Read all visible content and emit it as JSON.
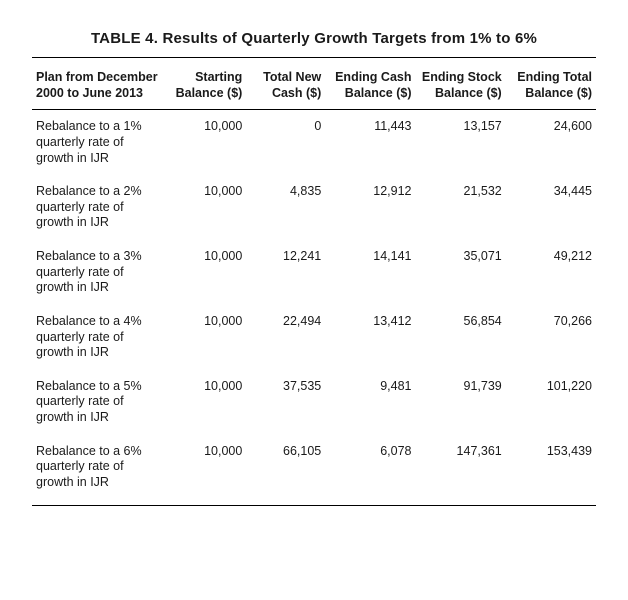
{
  "table": {
    "title": "TABLE 4. Results of Quarterly Growth Targets from 1% to 6%",
    "columns": [
      "Plan from December 2000 to June 2013",
      "Starting Balance ($)",
      "Total New Cash ($)",
      "Ending Cash Balance ($)",
      "Ending Stock Balance ($)",
      "Ending Total Balance ($)"
    ],
    "rows": [
      {
        "plan": "Rebalance to a 1% quarterly rate of growth in IJR",
        "starting": "10,000",
        "new_cash": "0",
        "end_cash": "11,443",
        "end_stock": "13,157",
        "end_total": "24,600"
      },
      {
        "plan": "Rebalance to a 2% quarterly rate of growth in IJR",
        "starting": "10,000",
        "new_cash": "4,835",
        "end_cash": "12,912",
        "end_stock": "21,532",
        "end_total": "34,445"
      },
      {
        "plan": "Rebalance to a 3% quarterly rate of growth in IJR",
        "starting": "10,000",
        "new_cash": "12,241",
        "end_cash": "14,141",
        "end_stock": "35,071",
        "end_total": "49,212"
      },
      {
        "plan": "Rebalance to a 4% quarterly rate of growth in IJR",
        "starting": "10,000",
        "new_cash": "22,494",
        "end_cash": "13,412",
        "end_stock": "56,854",
        "end_total": "70,266"
      },
      {
        "plan": "Rebalance to a 5% quarterly rate of growth in IJR",
        "starting": "10,000",
        "new_cash": "37,535",
        "end_cash": "9,481",
        "end_stock": "91,739",
        "end_total": "101,220"
      },
      {
        "plan": "Rebalance to a 6% quarterly rate of growth in IJR",
        "starting": "10,000",
        "new_cash": "66,105",
        "end_cash": "6,078",
        "end_stock": "147,361",
        "end_total": "153,439"
      }
    ],
    "colors": {
      "text": "#1a1a1a",
      "rule": "#000000",
      "background": "#ffffff"
    },
    "typography": {
      "title_fontsize_pt": 11,
      "header_fontsize_pt": 9,
      "body_fontsize_pt": 9,
      "font_family": "Helvetica Neue"
    }
  }
}
